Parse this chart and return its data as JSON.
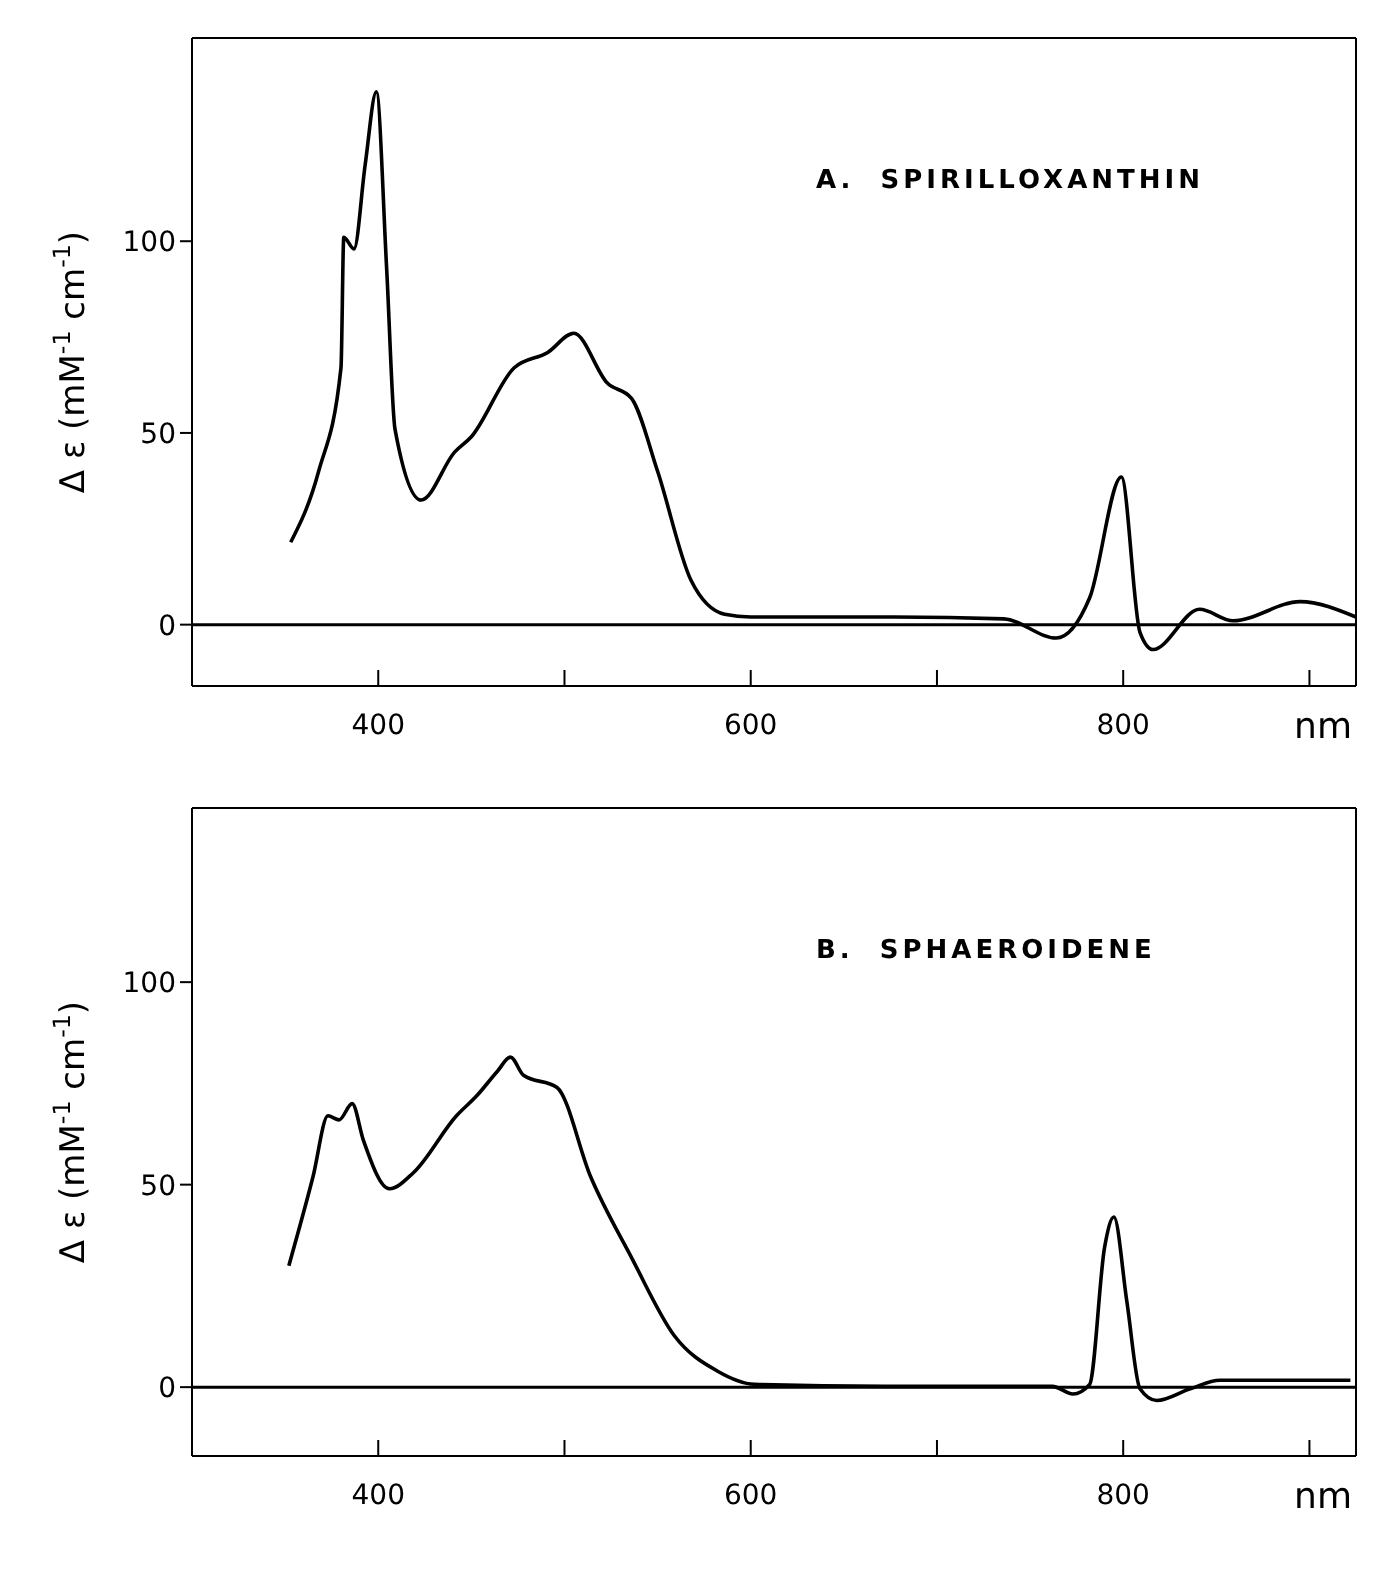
{
  "chart_data": [
    {
      "type": "line",
      "annotations": [
        "A.  SPIRILLOXANTHIN"
      ],
      "xlabel": "nm",
      "ylabel": "Δ ε (mM$^{-1}$ cm$^{-1}$)",
      "xlim": [
        300,
        925
      ],
      "xticks": [
        400,
        {
          "value": 500,
          "label": null
        },
        600,
        {
          "value": 700,
          "label": null
        },
        800,
        {
          "value": 900,
          "label": null
        }
      ],
      "ylim": [
        -16,
        153
      ],
      "yticks": [
        0,
        50,
        100
      ],
      "grid": false,
      "legend": false,
      "marker": "none",
      "line_style": "solid",
      "ref_lines": [
        {
          "axis": "y",
          "value": 0,
          "label": null,
          "color": "#000000"
        }
      ],
      "series": [
        {
          "color": "#000000",
          "x": [
            353,
            368,
            380,
            381.5,
            387,
            393,
            399,
            404.5,
            409,
            423,
            441,
            450,
            473,
            491,
            505,
            523,
            536,
            550,
            568,
            586,
            600,
            677,
            736,
            764,
            782,
            799,
            809,
            816,
            841,
            859,
            895,
            925
          ],
          "values": [
            21.5,
            40,
            67,
            101,
            98,
            120,
            139,
            93,
            51,
            32.5,
            45,
            49,
            67,
            71,
            76,
            63,
            59,
            40,
            11.5,
            2.7,
            2,
            2,
            1.5,
            -3.5,
            7,
            38.5,
            -2,
            -6.5,
            4,
            1,
            6,
            2
          ]
        }
      ]
    },
    {
      "type": "line",
      "annotations": [
        "B.  SPHAEROIDENE"
      ],
      "xlabel": "nm",
      "ylabel": "Δ ε (mM$^{-1}$ cm$^{-1}$)",
      "xlim": [
        300,
        925
      ],
      "xticks": [
        400,
        {
          "value": 500,
          "label": null
        },
        600,
        {
          "value": 700,
          "label": null
        },
        800,
        {
          "value": 900,
          "label": null
        }
      ],
      "ylim": [
        -17,
        143
      ],
      "yticks": [
        0,
        50,
        100
      ],
      "grid": false,
      "legend": false,
      "marker": "none",
      "line_style": "solid",
      "ref_lines": [
        {
          "axis": "y",
          "value": 0,
          "label": null,
          "color": "#000000"
        }
      ],
      "series": [
        {
          "color": "#000000",
          "x": [
            352,
            365,
            373,
            379,
            386,
            392,
            406,
            419,
            442,
            453,
            464,
            471,
            478,
            496,
            514,
            536,
            559,
            582,
            602,
            672,
            762,
            773,
            782,
            790,
            795,
            802,
            809,
            818,
            836,
            852,
            922
          ],
          "values": [
            30,
            52,
            67,
            66,
            70,
            61,
            49,
            53,
            67,
            72,
            78,
            81.5,
            77,
            74,
            52,
            32,
            12.7,
            4,
            0.7,
            0.2,
            0.2,
            -1.7,
            0.7,
            34.5,
            42,
            21,
            -0.4,
            -3.3,
            -0.4,
            1.7,
            1.7
          ]
        }
      ]
    }
  ]
}
